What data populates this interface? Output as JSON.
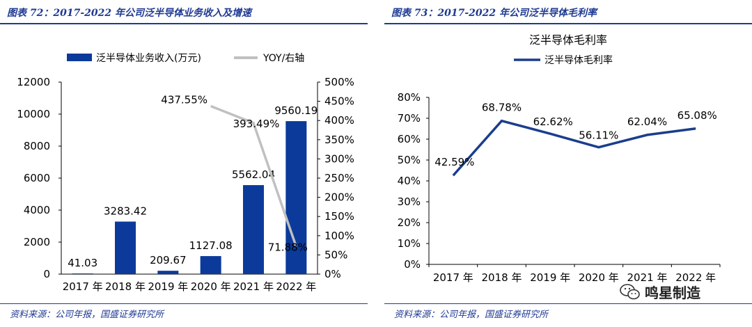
{
  "figures": [
    {
      "title": "图表 72：2017-2022 年公司泛半导体业务收入及增速",
      "source": "资料来源：公司年报，国盛证券研究所"
    },
    {
      "title": "图表 73：2017-2022 年公司泛半导体毛利率",
      "source": "资料来源：公司年报，国盛证券研究所"
    }
  ],
  "watermark": {
    "text": "鸣星制造"
  },
  "colors": {
    "bar": "#0b3a9a",
    "yoy_line": "#c0c0c0",
    "margin_line": "#1a3e8c",
    "accent": "#1f3a93"
  },
  "chart_data": [
    {
      "type": "bar",
      "title": "",
      "categories": [
        "2017 年",
        "2018 年",
        "2019 年",
        "2020 年",
        "2021 年",
        "2022 年"
      ],
      "series": [
        {
          "name": "泛半导体业务收入(万元)",
          "type": "bar",
          "axis": "left",
          "values": [
            41.03,
            3283.42,
            209.67,
            1127.08,
            5562.04,
            9560.19
          ],
          "labels": [
            "41.03",
            "3283.42",
            "209.67",
            "1127.08",
            "5562.04",
            "9560.19"
          ]
        },
        {
          "name": "YOY/右轴",
          "type": "line",
          "axis": "right",
          "points": [
            {
              "category": "2020 年",
              "value": 437.55,
              "label": "437.55%"
            },
            {
              "category": "2021 年",
              "value": 393.49,
              "label": "393.49%"
            },
            {
              "category": "2022 年",
              "value": 71.88,
              "label": "71.88%"
            }
          ]
        }
      ],
      "y_left": {
        "min": 0,
        "max": 12000,
        "ticks": [
          0,
          2000,
          4000,
          6000,
          8000,
          10000,
          12000
        ],
        "tick_labels": [
          "0",
          "2000",
          "4000",
          "6000",
          "8000",
          "10000",
          "12000"
        ]
      },
      "y_right": {
        "min": 0,
        "max": 500,
        "ticks": [
          0,
          50,
          100,
          150,
          200,
          250,
          300,
          350,
          400,
          450,
          500
        ],
        "tick_labels": [
          "0%",
          "50%",
          "100%",
          "150%",
          "200%",
          "250%",
          "300%",
          "350%",
          "400%",
          "450%",
          "500%"
        ]
      },
      "legend_position": "top"
    },
    {
      "type": "line",
      "title": "泛半导体毛利率",
      "categories": [
        "2017 年",
        "2018 年",
        "2019 年",
        "2020 年",
        "2021 年",
        "2022 年"
      ],
      "series": [
        {
          "name": "泛半导体毛利率",
          "values": [
            42.59,
            68.78,
            62.62,
            56.11,
            62.04,
            65.08
          ],
          "labels": [
            "42.59%",
            "68.78%",
            "62.62%",
            "56.11%",
            "62.04%",
            "65.08%"
          ]
        }
      ],
      "y": {
        "min": 0,
        "max": 80,
        "ticks": [
          0,
          10,
          20,
          30,
          40,
          50,
          60,
          70,
          80
        ],
        "tick_labels": [
          "0%",
          "10%",
          "20%",
          "30%",
          "40%",
          "50%",
          "60%",
          "70%",
          "80%"
        ]
      },
      "legend_position": "top"
    }
  ]
}
